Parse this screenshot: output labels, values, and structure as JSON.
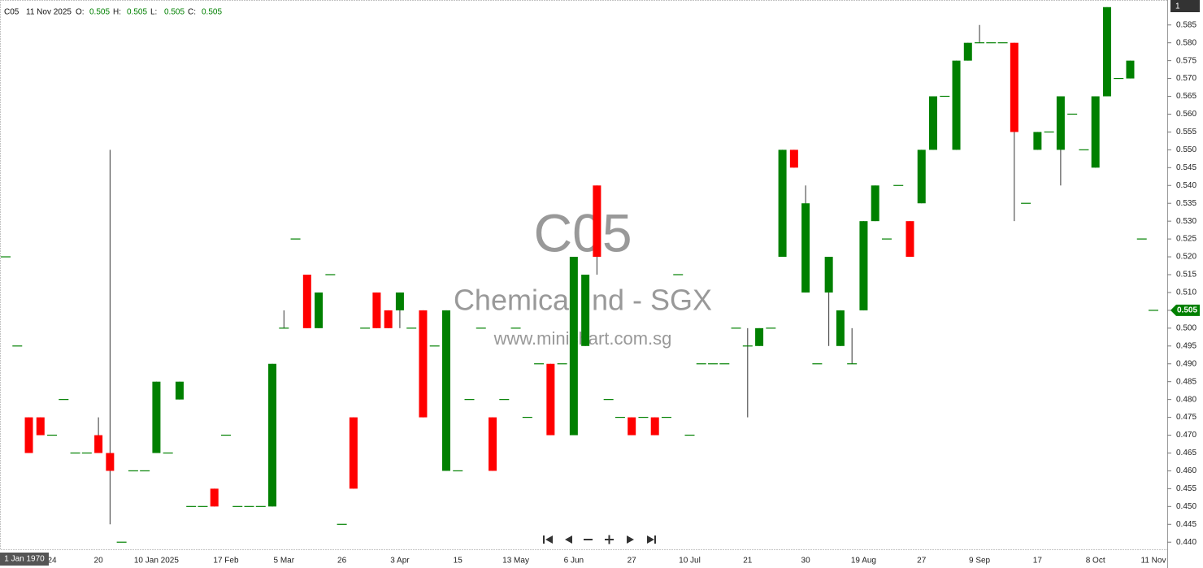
{
  "chart_data": {
    "type": "candlestick",
    "symbol": "C05",
    "date": "11 Nov 2025",
    "ohlc_legend": [
      {
        "label": "O:",
        "value": 0.505
      },
      {
        "label": "H:",
        "value": 0.505
      },
      {
        "label": "L:",
        "value": 0.505
      },
      {
        "label": "C:",
        "value": 0.505
      }
    ],
    "watermark": [
      "C05",
      "Chemical Ind - SGX",
      "www.minichart.com.sg"
    ],
    "interval": "1",
    "cursor_date": "1 Jan 1970",
    "last_price": 0.505,
    "up_color": "#008000",
    "down_color": "#ff0000",
    "ylim": [
      0.438,
      0.592
    ],
    "yticks": [
      {
        "value": 0.44,
        "label": "0.440"
      },
      0.445,
      {
        "value": 0.45,
        "label": "0.450"
      },
      0.455,
      {
        "value": 0.46,
        "label": "0.460"
      },
      0.465,
      {
        "value": 0.47,
        "label": "0.470"
      },
      0.475,
      {
        "value": 0.48,
        "label": "0.480"
      },
      0.485,
      {
        "value": 0.49,
        "label": "0.490"
      },
      0.495,
      {
        "value": 0.5,
        "label": "0.500"
      },
      0.505,
      {
        "value": 0.51,
        "label": "0.510"
      },
      0.515,
      {
        "value": 0.52,
        "label": "0.520"
      },
      0.525,
      {
        "value": 0.53,
        "label": "0.530"
      },
      0.535,
      {
        "value": 0.54,
        "label": "0.540"
      },
      0.545,
      {
        "value": 0.55,
        "label": "0.550"
      },
      0.555,
      {
        "value": 0.56,
        "label": "0.560"
      },
      0.565,
      {
        "value": 0.57,
        "label": "0.570"
      },
      0.575,
      {
        "value": 0.58,
        "label": "0.580"
      },
      0.585
    ],
    "categories": [
      null,
      null,
      null,
      null,
      "24",
      null,
      null,
      null,
      "20",
      null,
      null,
      null,
      null,
      "10 Jan 2025",
      null,
      null,
      null,
      null,
      null,
      "17 Feb",
      null,
      null,
      null,
      null,
      "5 Mar",
      null,
      null,
      null,
      null,
      "26",
      null,
      null,
      null,
      null,
      "3 Apr",
      null,
      null,
      null,
      null,
      "15",
      null,
      null,
      null,
      null,
      "13 May",
      null,
      null,
      null,
      null,
      "6 Jun",
      null,
      null,
      null,
      null,
      "27",
      null,
      null,
      null,
      null,
      "10 Jul",
      null,
      null,
      null,
      null,
      "21",
      null,
      null,
      null,
      null,
      "30",
      null,
      null,
      null,
      null,
      "19 Aug",
      null,
      null,
      null,
      null,
      "27",
      null,
      null,
      null,
      null,
      "9 Sep",
      null,
      null,
      null,
      null,
      "17",
      null,
      null,
      null,
      null,
      "8 Oct",
      null,
      null,
      null,
      null,
      "11 Nov"
    ],
    "open": [
      0.52,
      0.495,
      0.475,
      0.475,
      0.47,
      0.48,
      0.465,
      0.465,
      0.47,
      0.465,
      0.44,
      0.46,
      0.46,
      0.465,
      0.465,
      0.48,
      0.45,
      0.45,
      0.455,
      0.47,
      0.45,
      0.45,
      0.45,
      0.45,
      0.5,
      0.525,
      0.515,
      0.5,
      0.515,
      0.445,
      0.475,
      0.5,
      0.51,
      0.505,
      0.505,
      0.5,
      0.505,
      0.495,
      0.46,
      0.46,
      0.48,
      0.5,
      0.475,
      0.48,
      0.5,
      0.475,
      0.49,
      0.49,
      0.49,
      0.47,
      0.495,
      0.54,
      0.48,
      0.475,
      0.475,
      0.475,
      0.475,
      0.475,
      0.515,
      0.47,
      0.49,
      0.49,
      0.49,
      0.5,
      0.495,
      0.495,
      0.5,
      0.52,
      0.55,
      0.51,
      0.49,
      0.51,
      0.495,
      0.49,
      0.505,
      0.53,
      0.525,
      0.54,
      0.53,
      0.535,
      0.55,
      0.565,
      0.55,
      0.575,
      0.58,
      0.58,
      0.58,
      0.58,
      0.535,
      0.55,
      0.555,
      0.55,
      0.56,
      0.55,
      0.545,
      0.565,
      0.57,
      0.57,
      0.525,
      0.505
    ],
    "high": [
      0.52,
      0.495,
      0.475,
      0.475,
      0.47,
      0.48,
      0.465,
      0.465,
      0.475,
      0.55,
      0.44,
      0.46,
      0.46,
      0.485,
      0.465,
      0.485,
      0.45,
      0.45,
      0.455,
      0.47,
      0.45,
      0.45,
      0.45,
      0.49,
      0.505,
      0.525,
      0.515,
      0.51,
      0.515,
      0.445,
      0.475,
      0.5,
      0.51,
      0.505,
      0.51,
      0.5,
      0.505,
      0.495,
      0.505,
      0.46,
      0.48,
      0.5,
      0.475,
      0.48,
      0.5,
      0.475,
      0.49,
      0.49,
      0.49,
      0.52,
      0.515,
      0.54,
      0.48,
      0.475,
      0.475,
      0.475,
      0.475,
      0.475,
      0.515,
      0.47,
      0.49,
      0.49,
      0.49,
      0.5,
      0.5,
      0.5,
      0.5,
      0.55,
      0.55,
      0.54,
      0.49,
      0.52,
      0.505,
      0.5,
      0.53,
      0.54,
      0.525,
      0.54,
      0.53,
      0.55,
      0.565,
      0.565,
      0.575,
      0.58,
      0.585,
      0.58,
      0.58,
      0.58,
      0.535,
      0.555,
      0.555,
      0.565,
      0.56,
      0.55,
      0.565,
      0.59,
      0.57,
      0.575,
      0.525,
      0.505
    ],
    "low": [
      0.52,
      0.495,
      0.465,
      0.47,
      0.47,
      0.48,
      0.465,
      0.465,
      0.465,
      0.445,
      0.44,
      0.46,
      0.46,
      0.465,
      0.465,
      0.48,
      0.45,
      0.45,
      0.45,
      0.47,
      0.45,
      0.45,
      0.45,
      0.45,
      0.5,
      0.525,
      0.5,
      0.5,
      0.515,
      0.445,
      0.455,
      0.5,
      0.5,
      0.5,
      0.5,
      0.5,
      0.475,
      0.495,
      0.46,
      0.46,
      0.48,
      0.5,
      0.46,
      0.48,
      0.5,
      0.475,
      0.49,
      0.47,
      0.49,
      0.47,
      0.495,
      0.515,
      0.48,
      0.475,
      0.47,
      0.475,
      0.47,
      0.475,
      0.515,
      0.47,
      0.49,
      0.49,
      0.49,
      0.5,
      0.475,
      0.495,
      0.5,
      0.52,
      0.545,
      0.51,
      0.49,
      0.495,
      0.495,
      0.49,
      0.505,
      0.53,
      0.525,
      0.54,
      0.52,
      0.535,
      0.55,
      0.565,
      0.55,
      0.575,
      0.58,
      0.58,
      0.58,
      0.53,
      0.535,
      0.55,
      0.555,
      0.54,
      0.56,
      0.55,
      0.545,
      0.565,
      0.57,
      0.57,
      0.525,
      0.505
    ],
    "close": [
      0.52,
      0.495,
      0.465,
      0.47,
      0.47,
      0.48,
      0.465,
      0.465,
      0.465,
      0.46,
      0.44,
      0.46,
      0.46,
      0.485,
      0.465,
      0.485,
      0.45,
      0.45,
      0.45,
      0.47,
      0.45,
      0.45,
      0.45,
      0.49,
      0.5,
      0.525,
      0.5,
      0.51,
      0.515,
      0.445,
      0.455,
      0.5,
      0.5,
      0.5,
      0.51,
      0.5,
      0.475,
      0.495,
      0.505,
      0.46,
      0.48,
      0.5,
      0.46,
      0.48,
      0.5,
      0.475,
      0.49,
      0.47,
      0.49,
      0.52,
      0.515,
      0.52,
      0.48,
      0.475,
      0.47,
      0.475,
      0.47,
      0.475,
      0.515,
      0.47,
      0.49,
      0.49,
      0.49,
      0.5,
      0.495,
      0.5,
      0.5,
      0.55,
      0.545,
      0.535,
      0.49,
      0.52,
      0.505,
      0.49,
      0.53,
      0.54,
      0.525,
      0.54,
      0.52,
      0.55,
      0.565,
      0.565,
      0.575,
      0.58,
      0.58,
      0.58,
      0.58,
      0.555,
      0.535,
      0.555,
      0.555,
      0.565,
      0.56,
      0.55,
      0.565,
      0.59,
      0.57,
      0.575,
      0.525,
      0.505
    ]
  }
}
